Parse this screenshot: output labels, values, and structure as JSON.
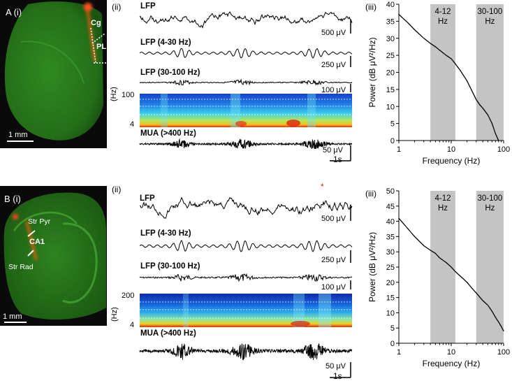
{
  "panelA": {
    "histo": {
      "panel_label": "A (i)",
      "region_cg": "Cg",
      "region_pl": "PL",
      "scale": "1 mm"
    },
    "traces": {
      "sub_label": "(ii)",
      "lfp": "LFP",
      "lfp_4_30": "LFP (4-30 Hz)",
      "lfp_30_100": "LFP (30-100 Hz)",
      "mua": "MUA (>400 Hz)",
      "scale_lfp": "500 μV",
      "scale_4_30": "250 μV",
      "scale_30_100": "100 μV",
      "scale_mua": "50 μV",
      "scale_time": "1s",
      "spec_top": "100",
      "spec_bottom": "4",
      "spec_unit": "(Hz)"
    }
  },
  "panelB": {
    "histo": {
      "panel_label": "B (i)",
      "str_pyr": "Str Pyr",
      "ca1": "CA1",
      "str_rad": "Str Rad",
      "scale": "1 mm"
    },
    "traces": {
      "sub_label": "(ii)",
      "lfp": "LFP",
      "lfp_4_30": "LFP (4-30 Hz)",
      "lfp_30_100": "LFP (30-100 Hz)",
      "mua": "MUA (>400 Hz)",
      "scale_lfp": "500 μV",
      "scale_4_30": "250 μV",
      "scale_30_100": "100 μV",
      "scale_mua": "50 μV",
      "scale_time": "1s",
      "spec_top": "200",
      "spec_bottom": "4",
      "spec_unit": "(Hz)",
      "marker": "*"
    }
  },
  "chart_data": [
    {
      "type": "line",
      "panel": "A (iii)",
      "sub_label": "(iii)",
      "xscale": "log",
      "xlim": [
        1,
        100
      ],
      "ylim": [
        0,
        40
      ],
      "xticks": [
        "1",
        "10",
        "100"
      ],
      "yticks": [
        "0",
        "5",
        "10",
        "15",
        "20",
        "25",
        "30",
        "35",
        "40"
      ],
      "xlabel": "Frequency (Hz)",
      "ylabel": "Power (dB μV²/Hz)",
      "bands": [
        {
          "label": "4-12\nHz",
          "from": 4,
          "to": 12
        },
        {
          "label": "30-100\nHz",
          "from": 30,
          "to": 100
        }
      ],
      "x": [
        1,
        1.5,
        2,
        3,
        4,
        5,
        6,
        8,
        10,
        12,
        15,
        20,
        25,
        30,
        35,
        40,
        50,
        60,
        70,
        80
      ],
      "y": [
        37,
        34.5,
        32.5,
        30,
        28.5,
        27.5,
        26.5,
        25,
        24,
        22.5,
        20.5,
        17.5,
        14.5,
        12,
        10.5,
        9.5,
        7.5,
        5,
        2,
        0
      ]
    },
    {
      "type": "line",
      "panel": "B (iii)",
      "sub_label": "(iii)",
      "xscale": "log",
      "xlim": [
        1,
        100
      ],
      "ylim": [
        0,
        50
      ],
      "xticks": [
        "1",
        "10",
        "100"
      ],
      "yticks": [
        "0",
        "5",
        "10",
        "15",
        "20",
        "25",
        "30",
        "35",
        "40",
        "45",
        "50"
      ],
      "xlabel": "Frequency (Hz)",
      "ylabel": "Power (dB μV²/Hz)",
      "bands": [
        {
          "label": "4-12\nHz",
          "from": 4,
          "to": 12
        },
        {
          "label": "30-100\nHz",
          "from": 30,
          "to": 100
        }
      ],
      "x": [
        1,
        1.5,
        2,
        3,
        4,
        5,
        6,
        8,
        10,
        12,
        15,
        20,
        25,
        30,
        40,
        50,
        60,
        70,
        80,
        90,
        100
      ],
      "y": [
        41,
        37.5,
        35,
        32,
        30.5,
        29.5,
        28,
        26.5,
        25,
        23.5,
        22,
        20,
        18,
        16.5,
        14,
        12.5,
        10.5,
        8.5,
        7,
        5.5,
        4
      ]
    }
  ]
}
